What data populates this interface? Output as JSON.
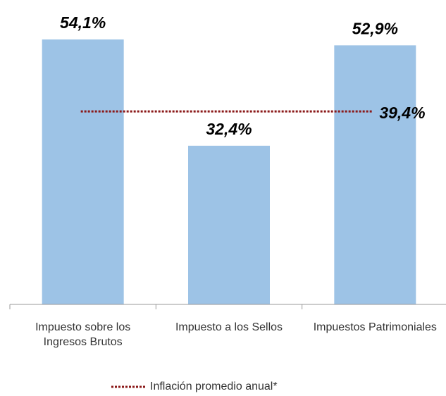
{
  "chart_data": {
    "type": "bar",
    "categories": [
      "Impuesto sobre los Ingresos Brutos",
      "Impuesto a los Sellos",
      "Impuestos Patrimoniales"
    ],
    "values": [
      54.1,
      32.4,
      52.9
    ],
    "value_labels": [
      "54,1%",
      "32,4%",
      "52,9%"
    ],
    "color": "#9dc3e6",
    "ylim": [
      0,
      60
    ],
    "lines": [
      {
        "type": "line",
        "name": "Inflación promedio anual*",
        "color": "#8b1a1a",
        "values": [
          39.4,
          39.4,
          39.4
        ],
        "value_labels": [
          null,
          null,
          "39,4%"
        ]
      }
    ],
    "legend": "bottom"
  }
}
